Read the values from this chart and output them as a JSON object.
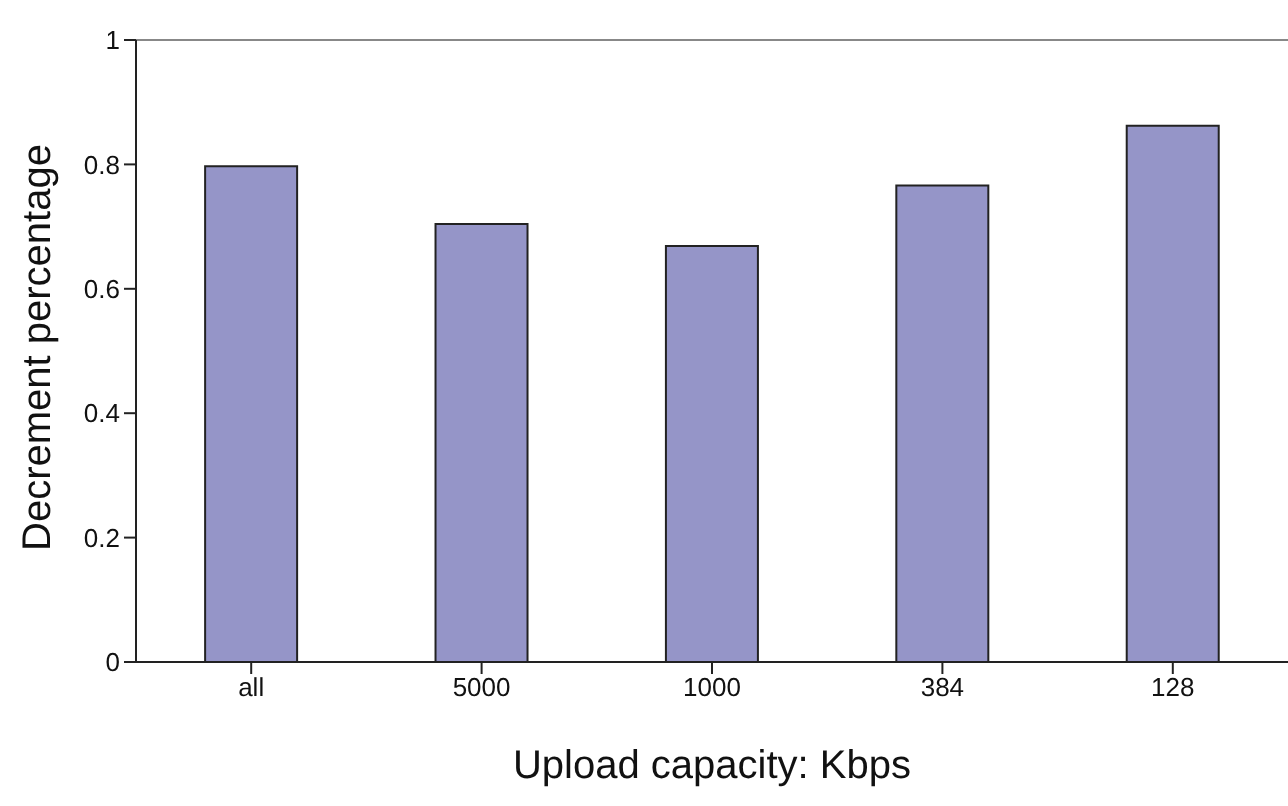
{
  "chart_data": {
    "type": "bar",
    "xlabel": "Upload capacity: Kbps",
    "ylabel": "Decrement percentage",
    "categories": [
      "all",
      "5000",
      "1000",
      "384",
      "128"
    ],
    "values": [
      0.797,
      0.704,
      0.669,
      0.766,
      0.862
    ],
    "color": "#9595c8",
    "ylim": [
      0,
      1
    ],
    "yticks": [
      0,
      0.2,
      0.4,
      0.6,
      0.8,
      1
    ],
    "grid": false,
    "legend": false
  }
}
